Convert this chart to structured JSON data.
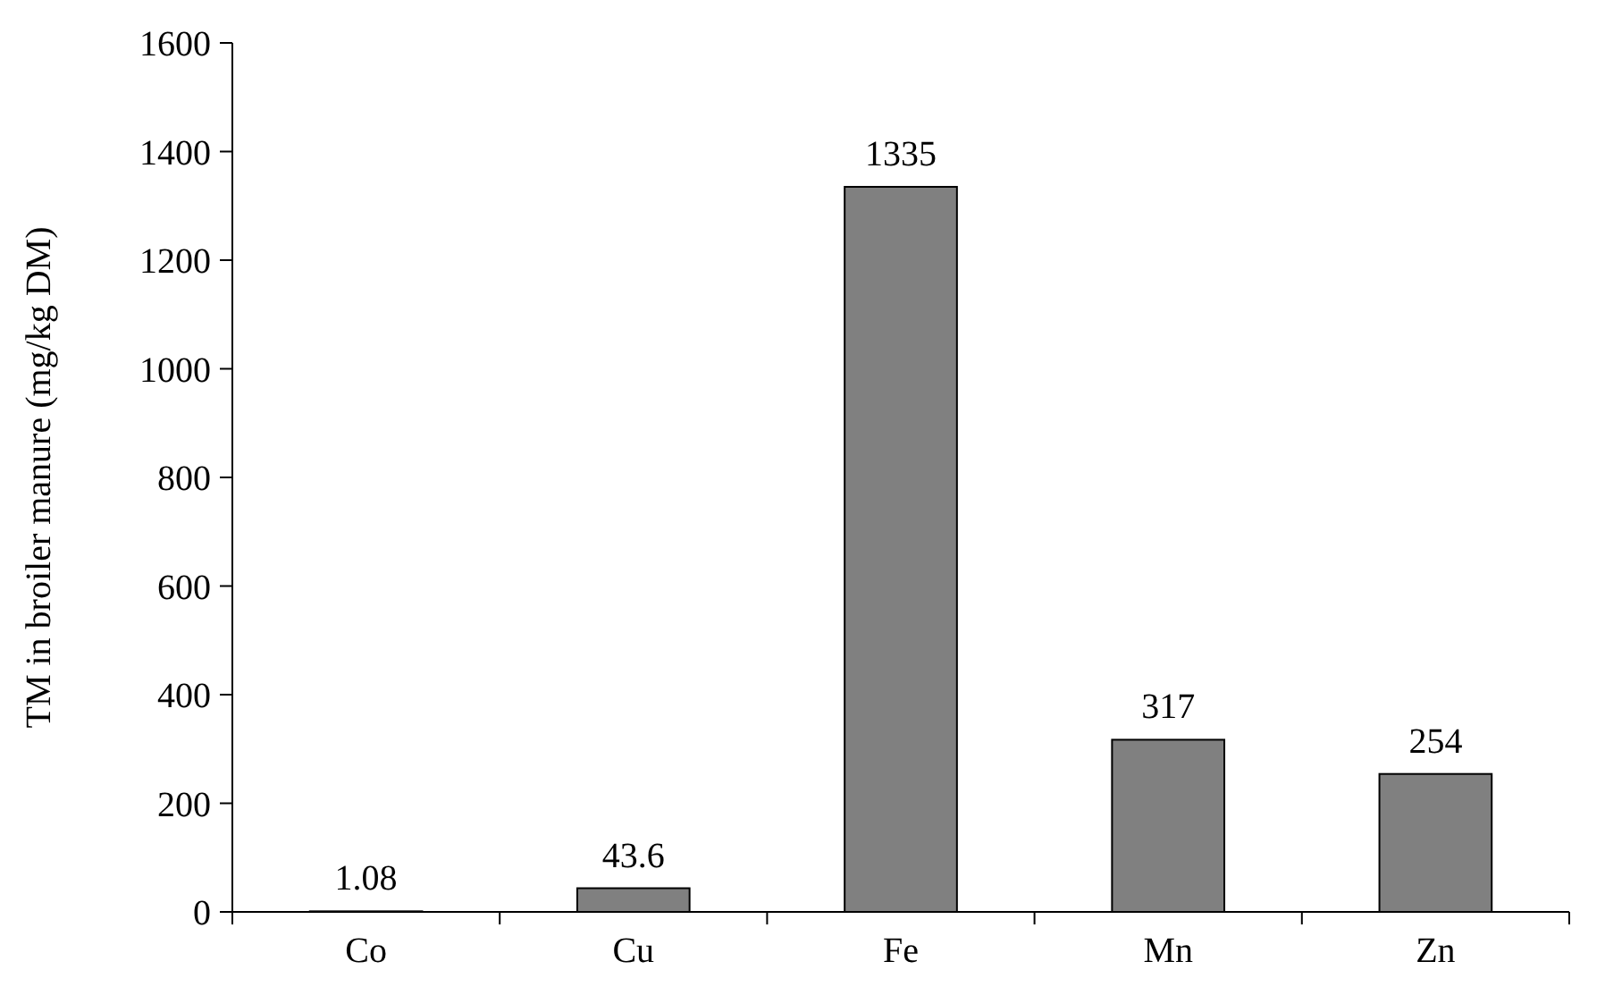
{
  "chart_data": {
    "type": "bar",
    "ylabel": "TM in broiler manure (mg/kg DM)",
    "categories": [
      "Co",
      "Cu",
      "Fe",
      "Mn",
      "Zn"
    ],
    "values": [
      1.08,
      43.6,
      1335,
      317,
      254
    ],
    "color": "#808080",
    "ylim": [
      0,
      1600
    ],
    "yticks": [
      0,
      200,
      400,
      600,
      800,
      1000,
      1200,
      1400,
      1600
    ],
    "data_labels": true,
    "grid": false
  }
}
